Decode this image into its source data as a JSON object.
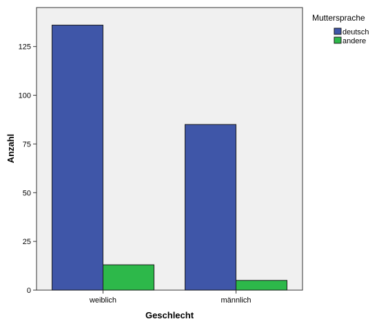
{
  "chart_data": {
    "type": "bar",
    "categories": [
      "weiblich",
      "männlich"
    ],
    "series": [
      {
        "name": "deutsch",
        "values": [
          136,
          85
        ],
        "color": "#3f56a8"
      },
      {
        "name": "andere",
        "values": [
          13,
          5
        ],
        "color": "#2db84a"
      }
    ],
    "xlabel": "Geschlecht",
    "ylabel": "Anzahl",
    "ylim": [
      0,
      145
    ],
    "yticks": [
      0,
      25,
      50,
      75,
      100,
      125
    ],
    "legend": {
      "title": "Muttersprache",
      "position": "top-right"
    },
    "grid": false,
    "plot_background": "#f0f0f0"
  }
}
